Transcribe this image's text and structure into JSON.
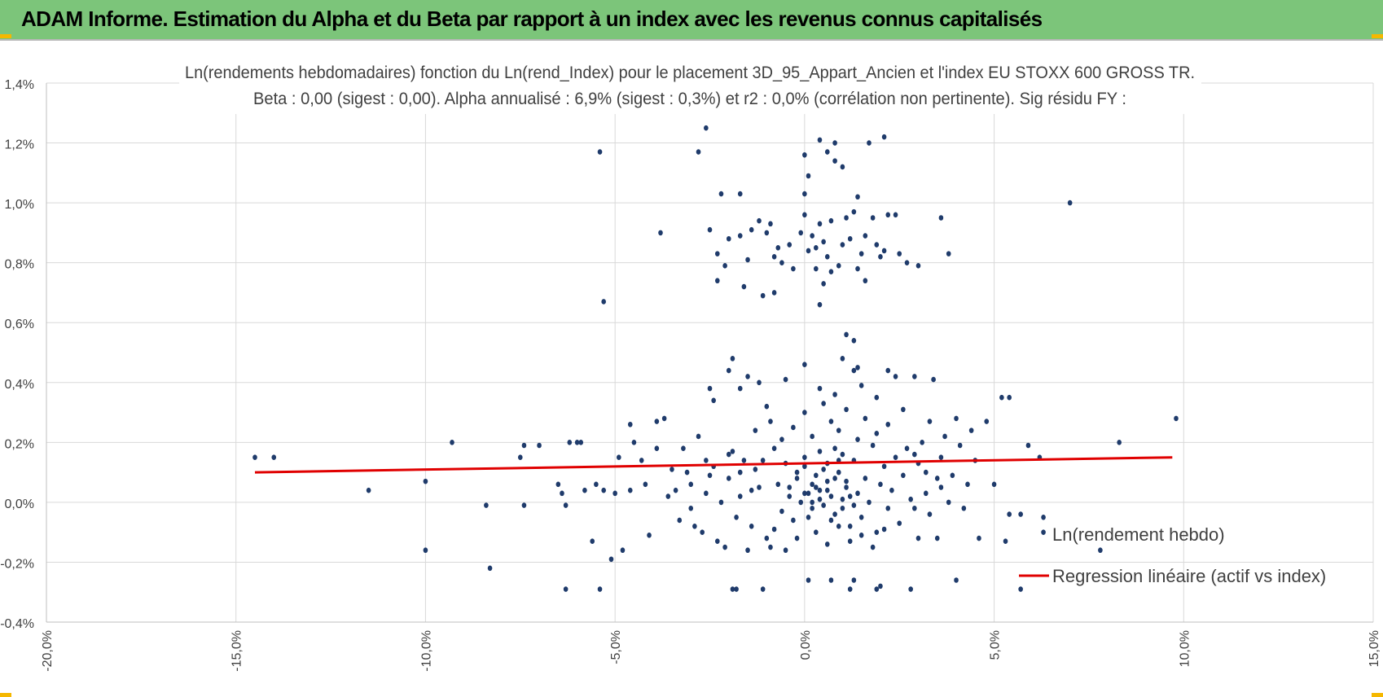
{
  "header": {
    "title": "ADAM Informe. Estimation du Alpha et du Beta par rapport à un index avec les revenus connus capitalisés"
  },
  "colors": {
    "banner_bg": "#7cc57a",
    "corner_marker": "#f5b800",
    "point": "#1f3b6b",
    "regression": "#e00000",
    "grid": "#d9d9d9"
  },
  "chart_data": {
    "type": "scatter",
    "title_line1": "Ln(rendements hebdomadaires) fonction du Ln(rend_Index) pour le placement 3D_95_Appart_Ancien et l'index EU STOXX 600 GROSS TR.",
    "title_line2": "Beta : 0,00 (sigest : 0,00). Alpha annualisé : 6,9% (sigest : 0,3%) et r2 : 0,0% (corrélation non pertinente). Sig résidu FY :",
    "xlabel": "",
    "ylabel": "",
    "xlim": [
      -20,
      15
    ],
    "ylim": [
      -0.4,
      1.4
    ],
    "x_ticks": [
      -20,
      -15,
      -10,
      -5,
      0,
      5,
      10,
      15
    ],
    "x_tick_labels": [
      "-20,0%",
      "-15,0%",
      "-10,0%",
      "-5,0%",
      "0,0%",
      "5,0%",
      "10,0%",
      "15,0%"
    ],
    "y_ticks": [
      -0.4,
      -0.2,
      0.0,
      0.2,
      0.4,
      0.6,
      0.8,
      1.0,
      1.2,
      1.4
    ],
    "y_tick_labels": [
      "-0,4%",
      "-0,2%",
      "0,0%",
      "0,2%",
      "0,4%",
      "0,6%",
      "0,8%",
      "1,0%",
      "1,2%",
      "1,4%"
    ],
    "grid": true,
    "legend": {
      "placement": "bottom-right",
      "entries": [
        "Ln(rendement hebdo)",
        "Regression linéaire (actif vs index)"
      ]
    },
    "series": [
      {
        "name": "Ln(rendement hebdo)",
        "kind": "points",
        "points": [
          [
            -14.5,
            0.15
          ],
          [
            -14.0,
            0.15
          ],
          [
            -11.5,
            0.04
          ],
          [
            -10.0,
            0.07
          ],
          [
            -10.0,
            -0.16
          ],
          [
            -9.3,
            0.2
          ],
          [
            -8.4,
            -0.01
          ],
          [
            -8.3,
            -0.22
          ],
          [
            -7.5,
            0.15
          ],
          [
            -7.4,
            0.19
          ],
          [
            -7.4,
            -0.01
          ],
          [
            -7.0,
            0.19
          ],
          [
            -6.5,
            0.06
          ],
          [
            -6.4,
            0.03
          ],
          [
            -6.3,
            -0.01
          ],
          [
            -6.3,
            -0.29
          ],
          [
            -6.2,
            0.2
          ],
          [
            -6.0,
            0.2
          ],
          [
            -5.9,
            0.2
          ],
          [
            -5.8,
            0.04
          ],
          [
            -5.6,
            -0.13
          ],
          [
            -5.5,
            0.06
          ],
          [
            -5.4,
            -0.29
          ],
          [
            -5.3,
            0.04
          ],
          [
            -5.1,
            -0.19
          ],
          [
            -5.0,
            0.03
          ],
          [
            -4.9,
            0.15
          ],
          [
            -4.8,
            -0.16
          ],
          [
            -4.6,
            0.26
          ],
          [
            -4.6,
            0.04
          ],
          [
            -4.5,
            0.2
          ],
          [
            -4.3,
            0.14
          ],
          [
            -4.2,
            0.06
          ],
          [
            -4.1,
            -0.11
          ],
          [
            -3.9,
            0.27
          ],
          [
            -3.7,
            0.28
          ],
          [
            -5.4,
            1.17
          ],
          [
            -5.3,
            0.67
          ],
          [
            -3.8,
            0.9
          ],
          [
            -2.8,
            1.17
          ],
          [
            -2.6,
            1.25
          ],
          [
            -2.5,
            0.91
          ],
          [
            -2.3,
            0.83
          ],
          [
            -2.3,
            0.74
          ],
          [
            -2.2,
            1.03
          ],
          [
            -2.1,
            0.79
          ],
          [
            -2.0,
            0.88
          ],
          [
            -1.7,
            0.89
          ],
          [
            -1.7,
            1.03
          ],
          [
            -1.6,
            0.72
          ],
          [
            -1.5,
            0.81
          ],
          [
            -1.4,
            0.91
          ],
          [
            -1.2,
            0.94
          ],
          [
            -1.1,
            0.69
          ],
          [
            -1.0,
            0.9
          ],
          [
            -0.9,
            0.93
          ],
          [
            -0.8,
            0.82
          ],
          [
            -0.8,
            0.7
          ],
          [
            -0.7,
            0.85
          ],
          [
            -0.6,
            0.8
          ],
          [
            -0.4,
            0.86
          ],
          [
            -0.3,
            0.78
          ],
          [
            -0.1,
            0.9
          ],
          [
            0.0,
            0.96
          ],
          [
            0.0,
            1.16
          ],
          [
            0.0,
            1.03
          ],
          [
            0.1,
            0.84
          ],
          [
            0.1,
            1.09
          ],
          [
            0.2,
            0.89
          ],
          [
            0.3,
            0.78
          ],
          [
            0.3,
            0.85
          ],
          [
            0.4,
            1.21
          ],
          [
            0.4,
            0.93
          ],
          [
            0.4,
            0.66
          ],
          [
            0.5,
            0.87
          ],
          [
            0.5,
            0.73
          ],
          [
            0.6,
            1.17
          ],
          [
            0.6,
            0.82
          ],
          [
            0.7,
            0.77
          ],
          [
            0.7,
            0.94
          ],
          [
            0.8,
            1.2
          ],
          [
            0.8,
            1.14
          ],
          [
            0.9,
            0.79
          ],
          [
            1.0,
            0.86
          ],
          [
            1.0,
            1.12
          ],
          [
            1.1,
            0.95
          ],
          [
            1.2,
            0.88
          ],
          [
            1.3,
            0.97
          ],
          [
            1.4,
            0.78
          ],
          [
            1.4,
            1.02
          ],
          [
            1.5,
            0.83
          ],
          [
            1.6,
            0.89
          ],
          [
            1.6,
            0.74
          ],
          [
            1.7,
            1.2
          ],
          [
            1.8,
            0.95
          ],
          [
            1.9,
            0.86
          ],
          [
            2.0,
            0.82
          ],
          [
            2.1,
            0.84
          ],
          [
            2.1,
            1.22
          ],
          [
            2.2,
            0.96
          ],
          [
            2.4,
            0.96
          ],
          [
            2.5,
            0.83
          ],
          [
            2.7,
            0.8
          ],
          [
            3.0,
            0.79
          ],
          [
            3.6,
            0.95
          ],
          [
            3.8,
            0.83
          ],
          [
            7.0,
            1.0
          ],
          [
            1.1,
            0.56
          ],
          [
            1.3,
            0.54
          ],
          [
            1.4,
            0.45
          ],
          [
            -2.5,
            0.38
          ],
          [
            -2.4,
            0.34
          ],
          [
            -2.0,
            0.44
          ],
          [
            -1.9,
            0.48
          ],
          [
            -1.7,
            0.38
          ],
          [
            -1.5,
            0.42
          ],
          [
            -1.2,
            0.4
          ],
          [
            -1.0,
            0.32
          ],
          [
            -0.5,
            0.41
          ],
          [
            0.0,
            0.46
          ],
          [
            0.4,
            0.38
          ],
          [
            0.8,
            0.36
          ],
          [
            1.0,
            0.48
          ],
          [
            1.3,
            0.44
          ],
          [
            1.5,
            0.39
          ],
          [
            1.9,
            0.35
          ],
          [
            2.2,
            0.44
          ],
          [
            2.4,
            0.42
          ],
          [
            2.6,
            0.31
          ],
          [
            2.9,
            0.42
          ],
          [
            3.4,
            0.41
          ],
          [
            3.3,
            0.27
          ],
          [
            3.7,
            0.22
          ],
          [
            4.0,
            0.28
          ],
          [
            4.4,
            0.24
          ],
          [
            4.8,
            0.27
          ],
          [
            5.2,
            0.35
          ],
          [
            5.4,
            0.35
          ],
          [
            5.9,
            0.19
          ],
          [
            6.2,
            0.15
          ],
          [
            8.3,
            0.2
          ],
          [
            9.8,
            0.28
          ],
          [
            4.1,
            0.19
          ],
          [
            5.0,
            0.06
          ],
          [
            5.4,
            -0.04
          ],
          [
            5.7,
            -0.04
          ],
          [
            6.3,
            -0.05
          ],
          [
            6.3,
            -0.1
          ],
          [
            7.8,
            -0.16
          ],
          [
            4.6,
            -0.12
          ],
          [
            4.0,
            -0.26
          ],
          [
            5.7,
            -0.29
          ],
          [
            5.3,
            -0.13
          ],
          [
            2.8,
            -0.29
          ],
          [
            2.0,
            -0.28
          ],
          [
            1.9,
            -0.29
          ],
          [
            1.3,
            -0.26
          ],
          [
            1.2,
            -0.29
          ],
          [
            0.1,
            -0.26
          ],
          [
            0.7,
            -0.26
          ],
          [
            -1.1,
            -0.29
          ],
          [
            -1.8,
            -0.29
          ],
          [
            -1.9,
            -0.29
          ],
          [
            3.0,
            -0.12
          ],
          [
            3.5,
            -0.12
          ],
          [
            3.2,
            0.03
          ],
          [
            3.6,
            0.05
          ],
          [
            3.9,
            0.09
          ],
          [
            4.2,
            -0.02
          ],
          [
            4.5,
            0.14
          ],
          [
            3.1,
            0.2
          ],
          [
            2.9,
            0.16
          ],
          [
            -3.9,
            0.18
          ],
          [
            -3.5,
            0.11
          ],
          [
            -3.2,
            0.18
          ],
          [
            -3.0,
            0.06
          ],
          [
            -2.8,
            0.22
          ],
          [
            -2.6,
            0.03
          ],
          [
            -2.4,
            0.12
          ],
          [
            -2.2,
            0.0
          ],
          [
            -2.0,
            0.08
          ],
          [
            -1.8,
            -0.05
          ],
          [
            -1.6,
            0.14
          ],
          [
            -1.4,
            -0.08
          ],
          [
            -1.2,
            0.05
          ],
          [
            -1.0,
            -0.12
          ],
          [
            -3.6,
            0.02
          ],
          [
            -3.3,
            -0.06
          ],
          [
            -3.0,
            -0.02
          ],
          [
            -2.7,
            -0.1
          ],
          [
            -2.5,
            0.09
          ],
          [
            -2.1,
            -0.15
          ],
          [
            -1.9,
            0.17
          ],
          [
            -1.7,
            0.02
          ],
          [
            -1.3,
            0.11
          ],
          [
            -0.9,
            -0.15
          ],
          [
            -0.8,
            0.18
          ],
          [
            -0.7,
            0.06
          ],
          [
            -0.6,
            -0.03
          ],
          [
            -0.5,
            0.13
          ],
          [
            -0.4,
            0.02
          ],
          [
            -0.3,
            -0.06
          ],
          [
            -0.2,
            0.08
          ],
          [
            -0.1,
            0.0
          ],
          [
            0.0,
            0.12
          ],
          [
            0.1,
            0.03
          ],
          [
            0.2,
            -0.02
          ],
          [
            0.3,
            0.05
          ],
          [
            0.4,
            0.17
          ],
          [
            0.5,
            -0.01
          ],
          [
            0.6,
            0.07
          ],
          [
            0.7,
            0.02
          ],
          [
            0.8,
            -0.04
          ],
          [
            0.9,
            0.1
          ],
          [
            1.0,
            0.01
          ],
          [
            1.1,
            0.05
          ],
          [
            1.2,
            -0.08
          ],
          [
            1.3,
            0.14
          ],
          [
            1.4,
            0.03
          ],
          [
            1.5,
            -0.05
          ],
          [
            1.6,
            0.08
          ],
          [
            1.7,
            0.0
          ],
          [
            1.8,
            0.19
          ],
          [
            1.9,
            -0.1
          ],
          [
            2.0,
            0.06
          ],
          [
            2.1,
            0.12
          ],
          [
            2.2,
            -0.02
          ],
          [
            2.3,
            0.04
          ],
          [
            2.5,
            -0.07
          ],
          [
            2.6,
            0.09
          ],
          [
            2.8,
            0.01
          ],
          [
            3.0,
            0.13
          ],
          [
            3.3,
            -0.04
          ],
          [
            3.5,
            0.08
          ],
          [
            -0.3,
            0.25
          ],
          [
            0.0,
            0.3
          ],
          [
            0.2,
            0.22
          ],
          [
            0.5,
            0.33
          ],
          [
            0.7,
            0.27
          ],
          [
            0.9,
            0.24
          ],
          [
            1.1,
            0.31
          ],
          [
            1.4,
            0.21
          ],
          [
            1.6,
            0.28
          ],
          [
            1.9,
            0.23
          ],
          [
            2.2,
            0.26
          ],
          [
            -0.6,
            0.21
          ],
          [
            -0.9,
            0.27
          ],
          [
            -1.3,
            0.24
          ],
          [
            0.3,
            -0.1
          ],
          [
            0.6,
            -0.14
          ],
          [
            0.9,
            -0.08
          ],
          [
            1.2,
            -0.13
          ],
          [
            1.5,
            -0.11
          ],
          [
            1.8,
            -0.15
          ],
          [
            2.1,
            -0.09
          ],
          [
            -0.2,
            -0.12
          ],
          [
            -0.5,
            -0.16
          ],
          [
            -0.8,
            -0.09
          ],
          [
            -1.5,
            -0.16
          ],
          [
            -2.3,
            -0.13
          ],
          [
            -2.9,
            -0.08
          ],
          [
            0.0,
            0.03
          ],
          [
            0.2,
            0.06
          ],
          [
            0.4,
            0.01
          ],
          [
            0.6,
            0.04
          ],
          [
            0.8,
            0.08
          ],
          [
            1.0,
            -0.02
          ],
          [
            1.2,
            0.02
          ],
          [
            0.1,
            -0.05
          ],
          [
            0.3,
            0.09
          ],
          [
            0.5,
            0.11
          ],
          [
            0.7,
            -0.06
          ],
          [
            0.9,
            0.14
          ],
          [
            1.1,
            0.07
          ],
          [
            1.3,
            -0.01
          ],
          [
            -0.4,
            0.05
          ],
          [
            -0.2,
            0.1
          ],
          [
            0.0,
            0.15
          ],
          [
            0.2,
            0.0
          ],
          [
            0.4,
            0.04
          ],
          [
            0.6,
            0.13
          ],
          [
            0.8,
            0.18
          ],
          [
            1.0,
            0.16
          ],
          [
            -1.1,
            0.14
          ],
          [
            -1.4,
            0.04
          ],
          [
            -1.7,
            0.1
          ],
          [
            -2.0,
            0.16
          ],
          [
            -2.6,
            0.14
          ],
          [
            -3.1,
            0.1
          ],
          [
            -3.4,
            0.04
          ],
          [
            2.4,
            0.15
          ],
          [
            2.7,
            0.18
          ],
          [
            2.9,
            -0.02
          ],
          [
            3.2,
            0.1
          ],
          [
            3.6,
            0.15
          ],
          [
            3.8,
            0.0
          ],
          [
            4.3,
            0.06
          ]
        ]
      },
      {
        "name": "Regression linéaire (actif vs index)",
        "kind": "line",
        "points": [
          [
            -14.5,
            0.1
          ],
          [
            9.7,
            0.15
          ]
        ]
      }
    ]
  }
}
